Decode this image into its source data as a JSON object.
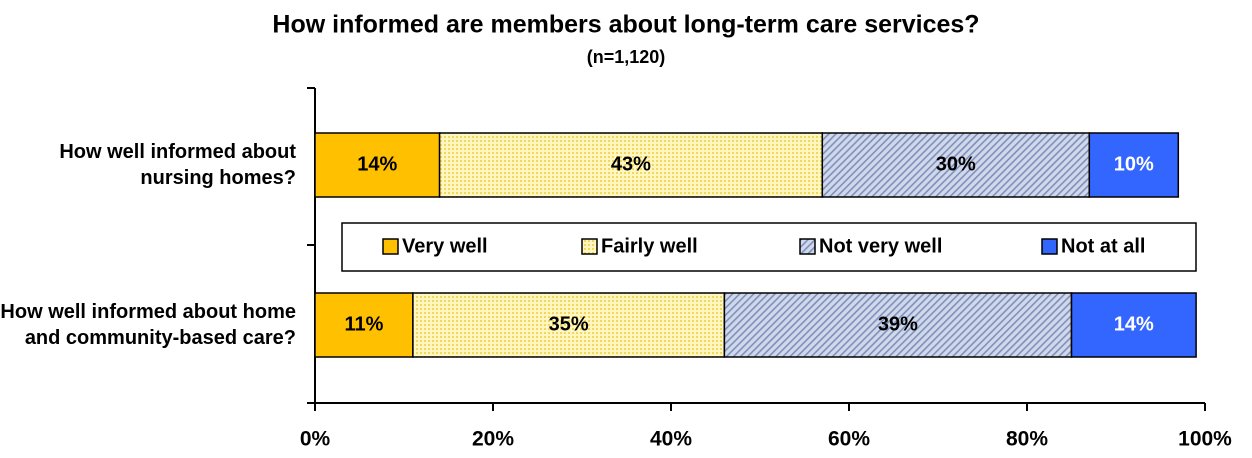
{
  "chart_data": {
    "type": "stacked-bar-horizontal",
    "title": "How informed are members about long-term care services?",
    "subtitle": "(n=1,120)",
    "categories": [
      "How well informed about nursing homes?",
      "How well informed about home and community-based care?"
    ],
    "series": [
      {
        "name": "Very well",
        "color": "#FFC000",
        "values": [
          14,
          11
        ],
        "value_labels": [
          "14%",
          "11%"
        ]
      },
      {
        "name": "Fairly well",
        "color": "#FFF0A0",
        "values": [
          43,
          35
        ],
        "value_labels": [
          "43%",
          "35%"
        ]
      },
      {
        "name": "Not very well",
        "color": "#B4C0DC",
        "values": [
          30,
          39
        ],
        "value_labels": [
          "30%",
          "39%"
        ]
      },
      {
        "name": "Not at all",
        "color": "#3366FF",
        "values": [
          10,
          14
        ],
        "value_labels": [
          "10%",
          "14%"
        ]
      }
    ],
    "xlim": [
      0,
      100
    ],
    "xticks": [
      {
        "value": 0,
        "label": "0%"
      },
      {
        "value": 20,
        "label": "20%"
      },
      {
        "value": 40,
        "label": "40%"
      },
      {
        "value": 60,
        "label": "60%"
      },
      {
        "value": 80,
        "label": "80%"
      },
      {
        "value": 100,
        "label": "100%"
      }
    ],
    "legend": "center"
  }
}
